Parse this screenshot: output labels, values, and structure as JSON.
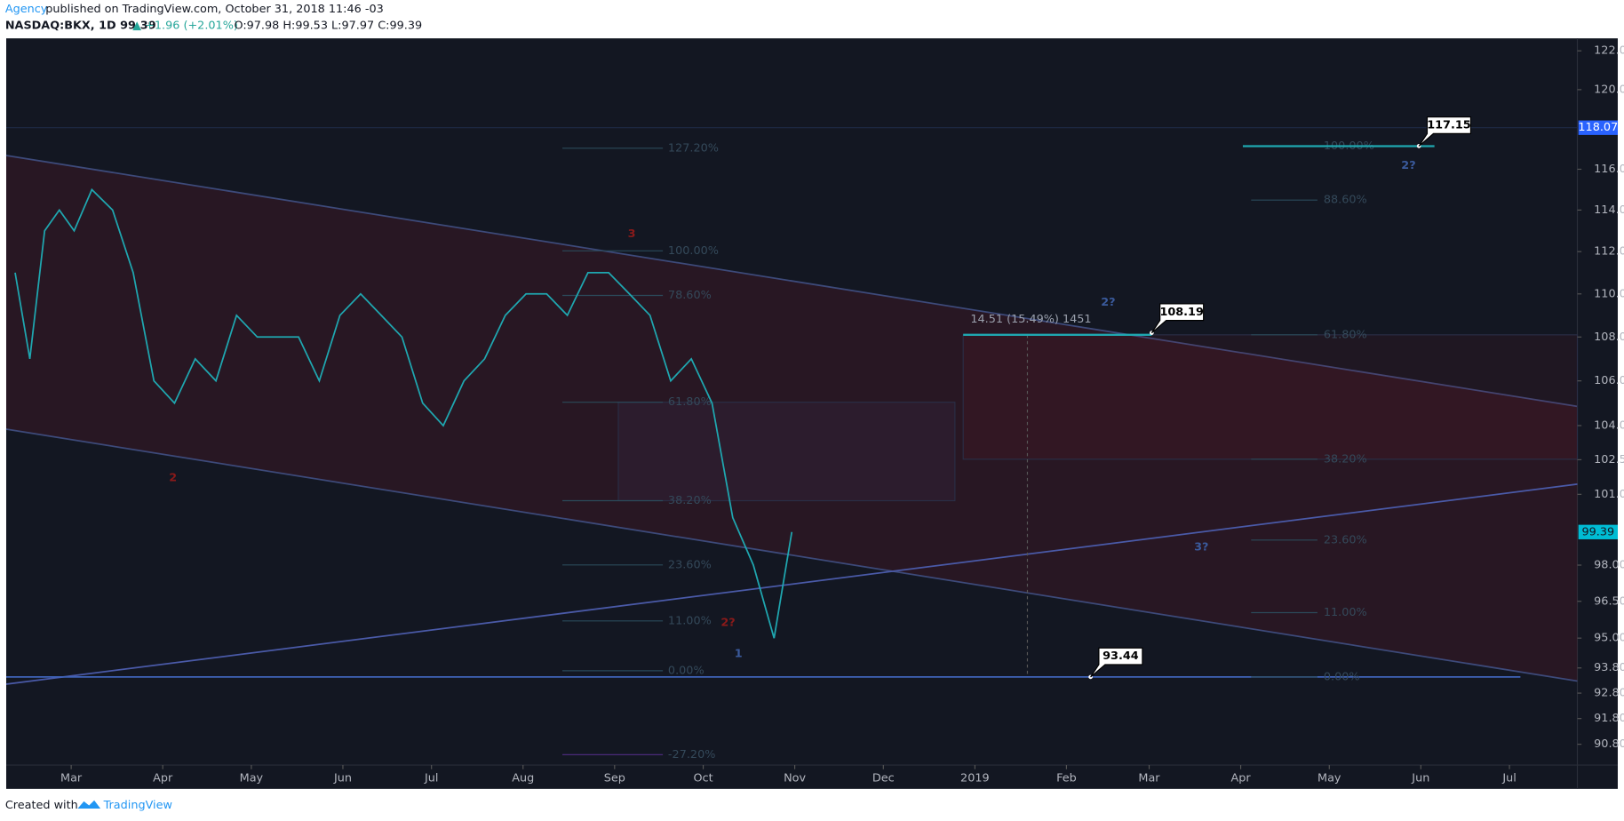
{
  "header": {
    "author": "Agency",
    "published": "published on TradingView.com, October 31, 2018 11:46 -03",
    "symbol": "NASDAQ:BKX, 1D 99.39",
    "change": "▲ +1.96 (+2.01%)",
    "ohlc": "O:97.98 H:99.53 L:97.97 C:99.39"
  },
  "chart_data": {
    "type": "line",
    "color": "#1fa7b0",
    "log_scale": true,
    "x": [
      40,
      45,
      50,
      55,
      60,
      66,
      73,
      80,
      87,
      94,
      101,
      108,
      115,
      122,
      129,
      136,
      143,
      150,
      157,
      164,
      171,
      178,
      185,
      192,
      199,
      206,
      213,
      220,
      227,
      234,
      241,
      248,
      255,
      262,
      269,
      276,
      283,
      290,
      297,
      303
    ],
    "values": [
      111,
      107,
      113,
      114,
      113,
      115,
      114,
      111,
      106,
      105,
      107,
      106,
      109,
      108,
      108,
      108,
      106,
      109,
      110,
      109,
      108,
      105,
      104,
      106,
      107,
      109,
      110,
      110,
      109,
      111,
      111,
      110,
      109,
      106,
      107,
      105,
      100,
      98,
      95,
      99.39
    ],
    "xlim": [
      37,
      569
    ],
    "xticks": [
      {
        "value": 59,
        "label": "Mar"
      },
      {
        "value": 90,
        "label": "Apr"
      },
      {
        "value": 120,
        "label": "May"
      },
      {
        "value": 151,
        "label": "Jun"
      },
      {
        "value": 181,
        "label": "Jul"
      },
      {
        "value": 212,
        "label": "Aug"
      },
      {
        "value": 243,
        "label": "Sep"
      },
      {
        "value": 273,
        "label": "Oct"
      },
      {
        "value": 304,
        "label": "Nov"
      },
      {
        "value": 334,
        "label": "Dec"
      },
      {
        "value": 365,
        "label": "2019"
      },
      {
        "value": 396,
        "label": "Feb"
      },
      {
        "value": 424,
        "label": "Mar"
      },
      {
        "value": 455,
        "label": "Apr"
      },
      {
        "value": 485,
        "label": "May"
      },
      {
        "value": 516,
        "label": "Jun"
      },
      {
        "value": 546,
        "label": "Jul"
      }
    ],
    "ylim": [
      90.0,
      122.65
    ],
    "yticks": [
      {
        "value": 122,
        "label": "122.00"
      },
      {
        "value": 120,
        "label": "120.00"
      },
      {
        "value": 116,
        "label": "116.00"
      },
      {
        "value": 114,
        "label": "114.00"
      },
      {
        "value": 112,
        "label": "112.00"
      },
      {
        "value": 110,
        "label": "110.00"
      },
      {
        "value": 108,
        "label": "108.00"
      },
      {
        "value": 106,
        "label": "106.00"
      },
      {
        "value": 104,
        "label": "104.00"
      },
      {
        "value": 102.5,
        "label": "102.50"
      },
      {
        "value": 101,
        "label": "101.00"
      },
      {
        "value": 98,
        "label": "98.00"
      },
      {
        "value": 96.5,
        "label": "96.50"
      },
      {
        "value": 95,
        "label": "95.00"
      },
      {
        "value": 93.8,
        "label": "93.80"
      },
      {
        "value": 92.8,
        "label": "92.80"
      },
      {
        "value": 91.8,
        "label": "91.80"
      },
      {
        "value": 90.8,
        "label": "90.80"
      }
    ],
    "price_labels": [
      118.07,
      99.39
    ],
    "callouts": [
      117.15,
      108.19,
      93.44
    ],
    "measure": "14.51 (15.49%) 1451",
    "wave_labels": [
      "3",
      "2",
      "2?",
      "1",
      "2?",
      "2?",
      "3?"
    ],
    "fib_left": [
      "127.20%",
      "100.00%",
      "78.60%",
      "61.80%",
      "38.20%",
      "23.60%",
      "11.00%",
      "0.00%",
      "-27.20%"
    ],
    "fib_right": [
      "100.00%",
      "88.60%",
      "61.80%",
      "38.20%",
      "23.60%",
      "11.00%",
      "0.00%"
    ]
  },
  "footer": {
    "created": "Created with",
    "brand": "TradingView"
  }
}
